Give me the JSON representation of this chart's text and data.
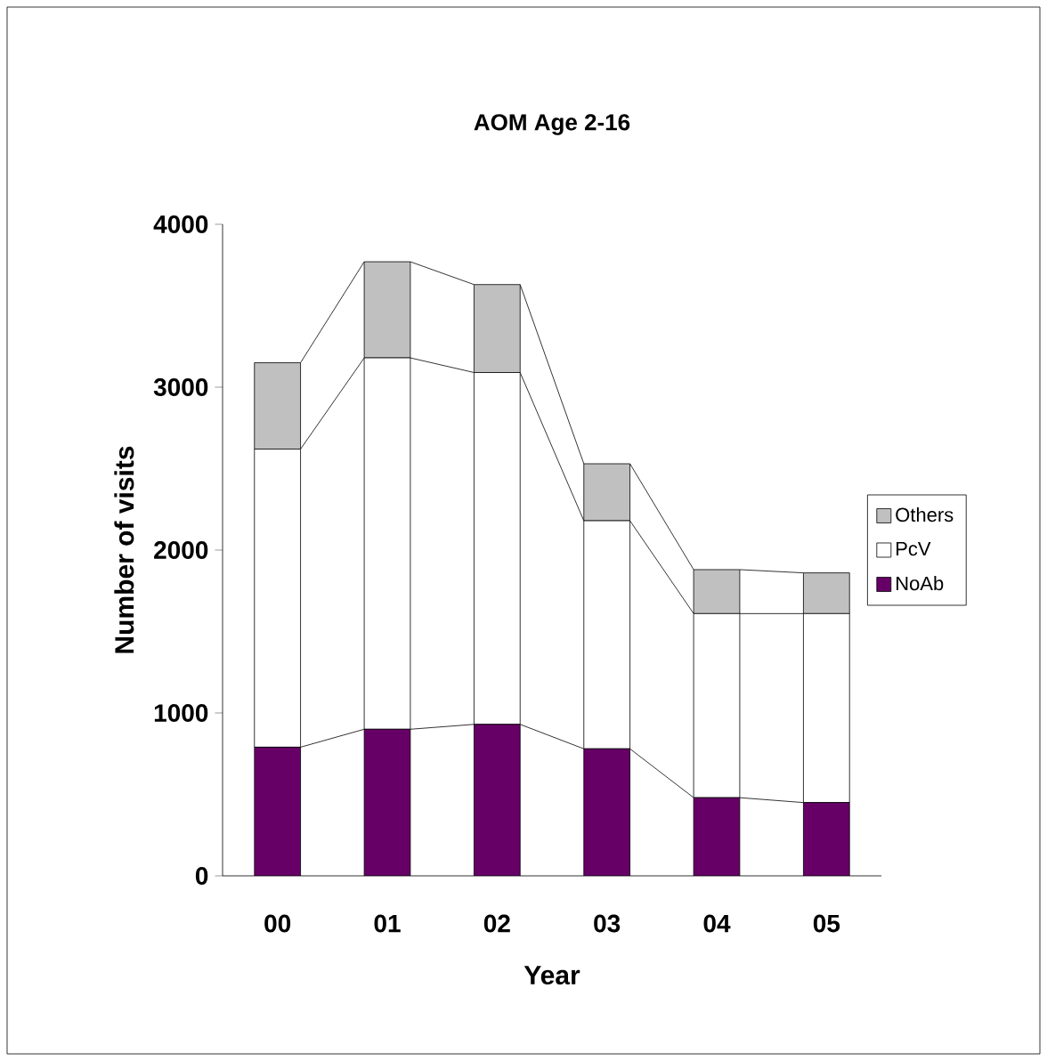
{
  "chart_data": {
    "type": "bar",
    "title": "AOM Age 2-16",
    "xlabel": "Year",
    "ylabel": "Number of visits",
    "categories": [
      "00",
      "01",
      "02",
      "03",
      "04",
      "05"
    ],
    "stacked": true,
    "series": [
      {
        "name": "NoAb",
        "color": "#660066",
        "values": [
          790,
          900,
          930,
          780,
          480,
          450
        ]
      },
      {
        "name": "PcV",
        "color": "#ffffff",
        "values": [
          1830,
          2280,
          2160,
          1400,
          1130,
          1160
        ]
      },
      {
        "name": "Others",
        "color": "#c0c0c0",
        "values": [
          530,
          590,
          540,
          350,
          270,
          250
        ]
      }
    ],
    "ylim": [
      0,
      4000
    ],
    "yticks": [
      0,
      1000,
      2000,
      3000,
      4000
    ],
    "grid": false,
    "legend": "right"
  }
}
